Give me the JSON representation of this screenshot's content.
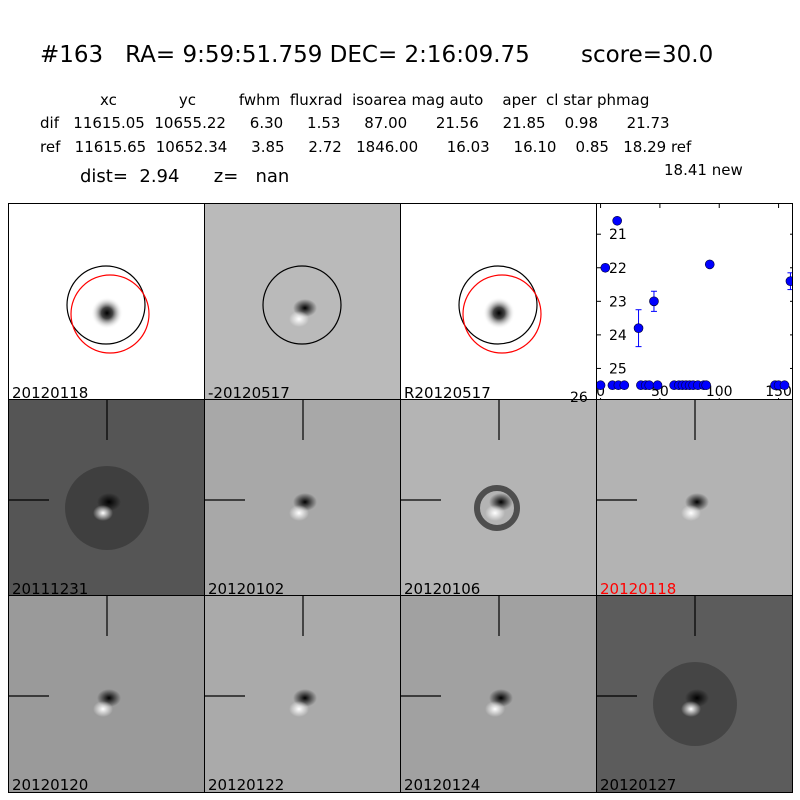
{
  "header": {
    "title": "#163   RA= 9:59:51.759 DEC= 2:16:09.75       score=30.0",
    "columns": "xc             yc         fwhm  fluxrad  isoarea mag auto    aper  cl star phmag",
    "dif_row": "dif   11615.05  10655.22     6.30     1.53     87.00      21.56     21.85    0.98      21.73",
    "ref_row": "ref   11615.65  10652.34     3.85     2.72   1846.00      16.03     16.10    0.85   18.29 ref",
    "dist_line": "dist=  2.94      z=   nan",
    "new_mag": "18.41 new"
  },
  "stamps": [
    {
      "label": "20120118",
      "bg": "#ffffff",
      "style": "ref",
      "circles": true
    },
    {
      "label": "-20120517",
      "bg": "#bababa",
      "style": "diff",
      "circles": true
    },
    {
      "label": "R20120517",
      "bg": "#ffffff",
      "style": "ref",
      "circles": true
    },
    {
      "label": "20111231",
      "bg": "#555555",
      "style": "noisy",
      "circles": false
    },
    {
      "label": "20120102",
      "bg": "#a8a8a8",
      "style": "diff",
      "circles": false
    },
    {
      "label": "20120106",
      "bg": "#b4b4b4",
      "style": "donut",
      "circles": false
    },
    {
      "label": "20120118",
      "bg": "#b3b3b3",
      "style": "diff",
      "circles": false,
      "highlight": true
    },
    {
      "label": "20120120",
      "bg": "#9a9a9a",
      "style": "diff",
      "circles": false
    },
    {
      "label": "20120122",
      "bg": "#aaaaaa",
      "style": "diff",
      "circles": false
    },
    {
      "label": "20120124",
      "bg": "#a1a1a1",
      "style": "diff",
      "circles": false
    },
    {
      "label": "20120127",
      "bg": "#5c5c5c",
      "style": "noisy",
      "circles": false
    }
  ],
  "colors": {
    "highlight_label": "#ff0000",
    "red_circle": "#ff0000",
    "black_circle": "#000000",
    "points": "#0000ff"
  },
  "chart_data": {
    "type": "scatter",
    "title": "",
    "xlabel": "",
    "ylabel": "",
    "xlim": [
      -3,
      163
    ],
    "ylim": [
      26,
      20.1
    ],
    "y_inverted": true,
    "xticks": [
      0,
      50,
      100,
      150
    ],
    "yticks": [
      21,
      22,
      23,
      24,
      25,
      26
    ],
    "grid": false,
    "series": [
      {
        "marker": "circle",
        "color": "#0000ff",
        "points": [
          {
            "x": 0,
            "y": 25.5
          },
          {
            "x": 4,
            "y": 22.0,
            "err": 0.1
          },
          {
            "x": 10,
            "y": 25.5
          },
          {
            "x": 14,
            "y": 20.6
          },
          {
            "x": 15,
            "y": 25.5
          },
          {
            "x": 20,
            "y": 25.5
          },
          {
            "x": 32,
            "y": 23.8,
            "err": 0.55
          },
          {
            "x": 34,
            "y": 25.5
          },
          {
            "x": 38,
            "y": 25.5
          },
          {
            "x": 41,
            "y": 25.5
          },
          {
            "x": 45,
            "y": 23.0,
            "err": 0.3
          },
          {
            "x": 48,
            "y": 25.5
          },
          {
            "x": 62,
            "y": 25.5
          },
          {
            "x": 66,
            "y": 25.5
          },
          {
            "x": 69,
            "y": 25.5
          },
          {
            "x": 72,
            "y": 25.5
          },
          {
            "x": 75,
            "y": 25.5
          },
          {
            "x": 78,
            "y": 25.5
          },
          {
            "x": 82,
            "y": 25.5
          },
          {
            "x": 87,
            "y": 25.5
          },
          {
            "x": 89,
            "y": 25.5
          },
          {
            "x": 92,
            "y": 21.9
          },
          {
            "x": 147,
            "y": 25.5
          },
          {
            "x": 150,
            "y": 25.5
          },
          {
            "x": 155,
            "y": 25.5
          },
          {
            "x": 160,
            "y": 22.4,
            "err": 0.25
          }
        ]
      }
    ]
  }
}
